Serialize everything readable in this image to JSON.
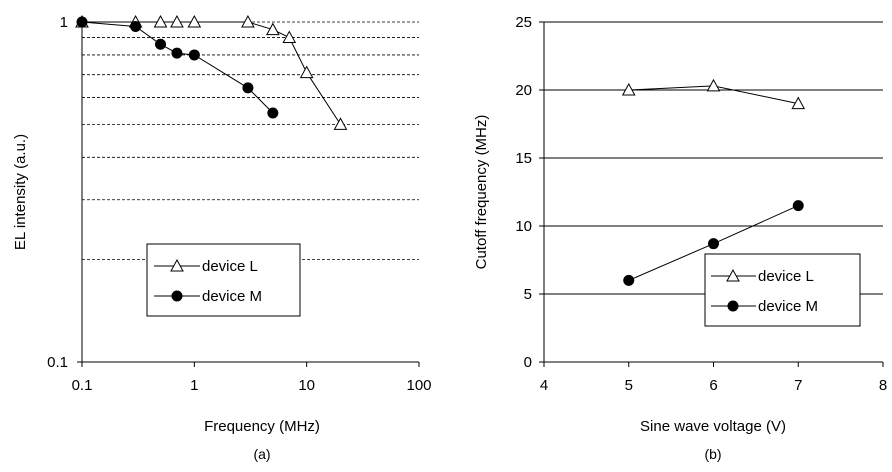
{
  "chart_data": [
    {
      "type": "line",
      "caption": "(a)",
      "xlabel": "Frequency (MHz)",
      "ylabel": "EL intensity (a.u.)",
      "xscale": "log",
      "yscale": "log",
      "xlim": [
        0.1,
        100
      ],
      "ylim": [
        0.1,
        1
      ],
      "x_tick_labels": [
        "0.1",
        "1",
        "10",
        "100"
      ],
      "y_tick_labels": [
        "0.1",
        "1"
      ],
      "grid": "horizontal dashed at 0.2, 0.3, 0.4, 0.5, 0.6, 0.7, 0.8, 0.9, 1",
      "legend_position": "lower-left",
      "series": [
        {
          "name": "device L",
          "marker": "open-triangle",
          "points": [
            {
              "x": 0.1,
              "y": 1.0
            },
            {
              "x": 0.3,
              "y": 1.0
            },
            {
              "x": 0.5,
              "y": 1.0
            },
            {
              "x": 0.7,
              "y": 1.0
            },
            {
              "x": 1.0,
              "y": 1.0
            },
            {
              "x": 3.0,
              "y": 1.0
            },
            {
              "x": 5.0,
              "y": 0.95
            },
            {
              "x": 7.0,
              "y": 0.9
            },
            {
              "x": 10.0,
              "y": 0.71
            },
            {
              "x": 20.0,
              "y": 0.5
            }
          ]
        },
        {
          "name": "device M",
          "marker": "filled-circle",
          "points": [
            {
              "x": 0.1,
              "y": 1.0
            },
            {
              "x": 0.3,
              "y": 0.97
            },
            {
              "x": 0.5,
              "y": 0.86
            },
            {
              "x": 0.7,
              "y": 0.81
            },
            {
              "x": 1.0,
              "y": 0.8
            },
            {
              "x": 3.0,
              "y": 0.64
            },
            {
              "x": 5.0,
              "y": 0.54
            }
          ]
        }
      ]
    },
    {
      "type": "line",
      "caption": "(b)",
      "xlabel": "Sine wave voltage (V)",
      "ylabel": "Cutoff frequency (MHz)",
      "xlim": [
        4,
        8
      ],
      "ylim": [
        0,
        25
      ],
      "x_tick_labels": [
        "4",
        "5",
        "6",
        "7",
        "8"
      ],
      "y_tick_labels": [
        "0",
        "5",
        "10",
        "15",
        "20",
        "25"
      ],
      "grid": "horizontal solid at 5, 10, 15, 20, 25",
      "legend_position": "lower-right",
      "series": [
        {
          "name": "device L",
          "marker": "open-triangle",
          "points": [
            {
              "x": 5,
              "y": 20.0
            },
            {
              "x": 6,
              "y": 20.3
            },
            {
              "x": 7,
              "y": 19.0
            }
          ]
        },
        {
          "name": "device M",
          "marker": "filled-circle",
          "points": [
            {
              "x": 5,
              "y": 6.0
            },
            {
              "x": 6,
              "y": 8.7
            },
            {
              "x": 7,
              "y": 11.5
            }
          ]
        }
      ]
    }
  ]
}
